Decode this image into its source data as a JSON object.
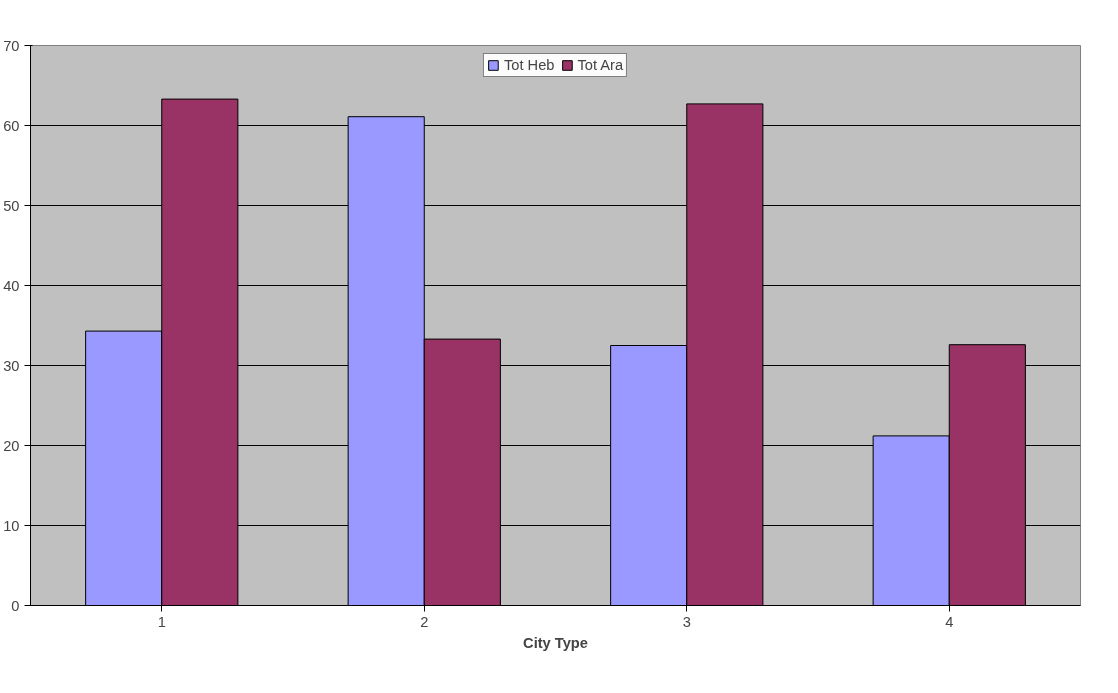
{
  "chart_data": {
    "type": "bar",
    "xlabel": "City Type",
    "categories": [
      "1",
      "2",
      "3",
      "4"
    ],
    "series": [
      {
        "name": "Tot Heb",
        "color": "#9999ff",
        "values": [
          34.3,
          61.1,
          32.5,
          21.2
        ]
      },
      {
        "name": "Tot Ara",
        "color": "#993366",
        "values": [
          63.3,
          33.3,
          62.7,
          32.6
        ]
      }
    ],
    "ylim": [
      0,
      70
    ],
    "yticks": [
      0,
      10,
      20,
      30,
      40,
      50,
      60,
      70
    ],
    "grid": "y",
    "legend": "top"
  }
}
